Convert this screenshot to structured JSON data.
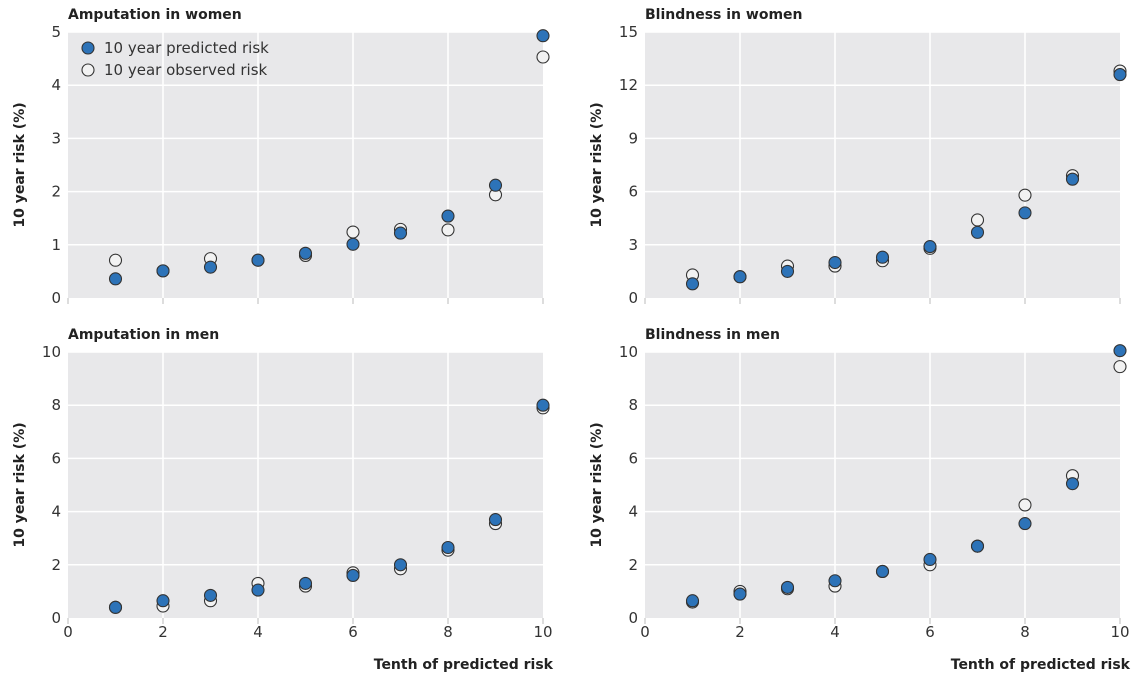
{
  "colors": {
    "panel_bg": "#e8e8ea",
    "grid": "#ffffff",
    "predicted_fill": "#2d73b8",
    "observed_fill": "#f2f2f2",
    "marker_stroke": "#333333"
  },
  "legend": {
    "predicted_label": "10 year predicted risk",
    "observed_label": "10 year observed risk"
  },
  "chart_data": [
    {
      "type": "scatter",
      "title": "Amputation in women",
      "xlabel": "",
      "ylabel": "10 year risk (%)",
      "x": [
        1,
        2,
        3,
        4,
        5,
        6,
        7,
        8,
        9,
        10
      ],
      "xlim": [
        0,
        10
      ],
      "ylim": [
        0,
        5
      ],
      "yticks": [
        0,
        1,
        2,
        3,
        4,
        5
      ],
      "xticks": [],
      "grid": true,
      "legend_position": "top-left",
      "series": [
        {
          "name": "10 year predicted risk",
          "values": [
            0.36,
            0.51,
            0.58,
            0.71,
            0.84,
            1.01,
            1.22,
            1.54,
            2.12,
            4.93
          ]
        },
        {
          "name": "10 year observed risk",
          "values": [
            0.71,
            0.51,
            0.74,
            0.71,
            0.8,
            1.24,
            1.29,
            1.28,
            1.94,
            4.53
          ]
        }
      ]
    },
    {
      "type": "scatter",
      "title": "Blindness in women",
      "xlabel": "",
      "ylabel": "10 year risk (%)",
      "x": [
        1,
        2,
        3,
        4,
        5,
        6,
        7,
        8,
        9,
        10
      ],
      "xlim": [
        0,
        10
      ],
      "ylim": [
        0,
        15
      ],
      "yticks": [
        0,
        3,
        6,
        9,
        12,
        15
      ],
      "xticks": [],
      "grid": true,
      "series": [
        {
          "name": "10 year predicted risk",
          "values": [
            0.8,
            1.2,
            1.5,
            2.0,
            2.3,
            2.9,
            3.7,
            4.8,
            6.7,
            12.6
          ]
        },
        {
          "name": "10 year observed risk",
          "values": [
            1.3,
            1.2,
            1.8,
            1.8,
            2.1,
            2.8,
            4.4,
            5.8,
            6.9,
            12.8
          ]
        }
      ]
    },
    {
      "type": "scatter",
      "title": "Amputation in men",
      "xlabel": "Tenth of predicted risk",
      "ylabel": "10 year risk (%)",
      "x": [
        1,
        2,
        3,
        4,
        5,
        6,
        7,
        8,
        9,
        10
      ],
      "xlim": [
        0,
        10
      ],
      "ylim": [
        0,
        10
      ],
      "yticks": [
        0,
        2,
        4,
        6,
        8,
        10
      ],
      "xticks": [
        0,
        2,
        4,
        6,
        8,
        10
      ],
      "grid": true,
      "series": [
        {
          "name": "10 year predicted risk",
          "values": [
            0.4,
            0.65,
            0.85,
            1.05,
            1.3,
            1.6,
            2.0,
            2.65,
            3.7,
            8.0
          ]
        },
        {
          "name": "10 year observed risk",
          "values": [
            0.4,
            0.45,
            0.65,
            1.3,
            1.2,
            1.7,
            1.85,
            2.55,
            3.55,
            7.9
          ]
        }
      ]
    },
    {
      "type": "scatter",
      "title": "Blindness in men",
      "xlabel": "Tenth of predicted risk",
      "ylabel": "10 year risk (%)",
      "x": [
        1,
        2,
        3,
        4,
        5,
        6,
        7,
        8,
        9,
        10
      ],
      "xlim": [
        0,
        10
      ],
      "ylim": [
        0,
        10
      ],
      "yticks": [
        0,
        2,
        4,
        6,
        8,
        10
      ],
      "xticks": [
        0,
        2,
        4,
        6,
        8,
        10
      ],
      "grid": true,
      "series": [
        {
          "name": "10 year predicted risk",
          "values": [
            0.65,
            0.9,
            1.15,
            1.4,
            1.75,
            2.2,
            2.7,
            3.55,
            5.05,
            10.05
          ]
        },
        {
          "name": "10 year observed risk",
          "values": [
            0.6,
            1.0,
            1.1,
            1.2,
            1.75,
            2.0,
            2.7,
            4.25,
            5.35,
            9.45
          ]
        }
      ]
    }
  ]
}
